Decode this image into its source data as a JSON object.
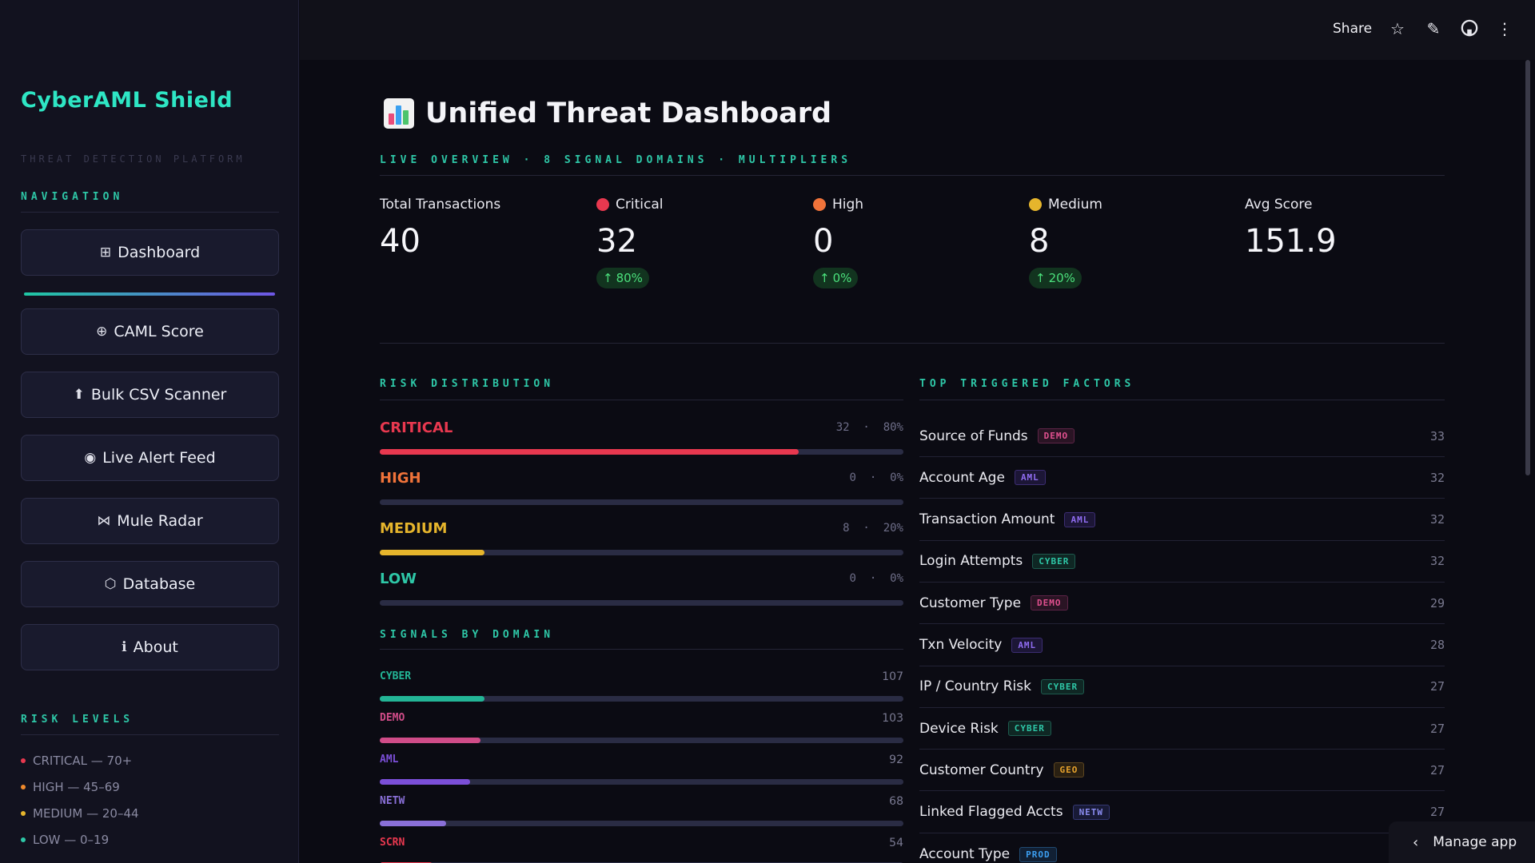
{
  "sidebar": {
    "brand": "CyberAML Shield",
    "brand_sub": "THREAT DETECTION PLATFORM",
    "nav_title": "NAVIGATION",
    "nav": [
      {
        "icon": "grid-icon",
        "glyph": "⊞",
        "label": "Dashboard"
      },
      {
        "icon": "target-icon",
        "glyph": "⊕",
        "label": "CAML Score"
      },
      {
        "icon": "upload-icon",
        "glyph": "⬆",
        "label": "Bulk CSV Scanner"
      },
      {
        "icon": "radio-dot-icon",
        "glyph": "◉",
        "label": "Live Alert Feed"
      },
      {
        "icon": "bowtie-icon",
        "glyph": "⋈",
        "label": "Mule Radar"
      },
      {
        "icon": "hexagon-icon",
        "glyph": "⬡",
        "label": "Database"
      },
      {
        "icon": "info-icon",
        "glyph": "ℹ",
        "label": "About"
      }
    ],
    "risk_title": "RISK LEVELS",
    "risk_levels": [
      {
        "label": "CRITICAL — 70+",
        "color": "#e8384f"
      },
      {
        "label": "HIGH — 45–69",
        "color": "#f08a2c"
      },
      {
        "label": "MEDIUM — 20–44",
        "color": "#e6b52c"
      },
      {
        "label": "LOW — 0–19",
        "color": "#2ec7a7"
      }
    ]
  },
  "topbar": {
    "share": "Share",
    "manage": "Manage app"
  },
  "page": {
    "title": "Unified Threat Dashboard",
    "subtitle": "LIVE OVERVIEW · 8 SIGNAL DOMAINS · MULTIPLIERS"
  },
  "metrics": [
    {
      "label": "Total Transactions",
      "value": "40",
      "delta": "",
      "dot": ""
    },
    {
      "label": "Critical",
      "value": "32",
      "delta": "80%",
      "dot": "#e8384f"
    },
    {
      "label": "High",
      "value": "0",
      "delta": "0%",
      "dot": "#f0733a"
    },
    {
      "label": "Medium",
      "value": "8",
      "delta": "20%",
      "dot": "#e6b52c"
    },
    {
      "label": "Avg Score",
      "value": "151.9",
      "delta": "",
      "dot": ""
    }
  ],
  "risk_distribution": {
    "title": "RISK DISTRIBUTION",
    "rows": [
      {
        "name": "CRITICAL",
        "count": "32",
        "pct": "80%",
        "fraction": 0.8,
        "color": "#e8384f"
      },
      {
        "name": "HIGH",
        "count": "0",
        "pct": "0%",
        "fraction": 0.0,
        "color": "#f0733a"
      },
      {
        "name": "MEDIUM",
        "count": "8",
        "pct": "20%",
        "fraction": 0.2,
        "color": "#e6b52c"
      },
      {
        "name": "LOW",
        "count": "0",
        "pct": "0%",
        "fraction": 0.0,
        "color": "#2ec7a7"
      }
    ]
  },
  "signals_by_domain": {
    "title": "SIGNALS BY DOMAIN",
    "max": 535,
    "rows": [
      {
        "name": "CYBER",
        "value": 107,
        "color": "#23b596"
      },
      {
        "name": "DEMO",
        "value": 103,
        "color": "#d04c88"
      },
      {
        "name": "AML",
        "value": 92,
        "color": "#7b4fd8"
      },
      {
        "name": "NETW",
        "value": 68,
        "color": "#8a70d8"
      },
      {
        "name": "SCRN",
        "value": 54,
        "color": "#e8384f"
      }
    ]
  },
  "top_factors": {
    "title": "TOP TRIGGERED FACTORS",
    "rows": [
      {
        "name": "Source of Funds",
        "tag": "DEMO",
        "count": "33"
      },
      {
        "name": "Account Age",
        "tag": "AML",
        "count": "32"
      },
      {
        "name": "Transaction Amount",
        "tag": "AML",
        "count": "32"
      },
      {
        "name": "Login Attempts",
        "tag": "CYBER",
        "count": "32"
      },
      {
        "name": "Customer Type",
        "tag": "DEMO",
        "count": "29"
      },
      {
        "name": "Txn Velocity",
        "tag": "AML",
        "count": "28"
      },
      {
        "name": "IP / Country Risk",
        "tag": "CYBER",
        "count": "27"
      },
      {
        "name": "Device Risk",
        "tag": "CYBER",
        "count": "27"
      },
      {
        "name": "Customer Country",
        "tag": "GEO",
        "count": "27"
      },
      {
        "name": "Linked Flagged Accts",
        "tag": "NETW",
        "count": "27"
      },
      {
        "name": "Account Type",
        "tag": "PROD",
        "count": ""
      }
    ],
    "tag_colors": {
      "DEMO": {
        "fg": "#e0508f",
        "bg": "#2a1424",
        "bd": "#5c2446"
      },
      "AML": {
        "fg": "#8f6cf0",
        "bg": "#1c1636",
        "bd": "#3c2d72"
      },
      "CYBER": {
        "fg": "#2ec7a7",
        "bg": "#0f2724",
        "bd": "#1d5a4d"
      },
      "GEO": {
        "fg": "#e6a22c",
        "bg": "#2a2012",
        "bd": "#5c4520"
      },
      "NETW": {
        "fg": "#8a8cf0",
        "bg": "#181a36",
        "bd": "#343872"
      },
      "PROD": {
        "fg": "#3c9ef0",
        "bg": "#112034",
        "bd": "#204a72"
      }
    }
  }
}
